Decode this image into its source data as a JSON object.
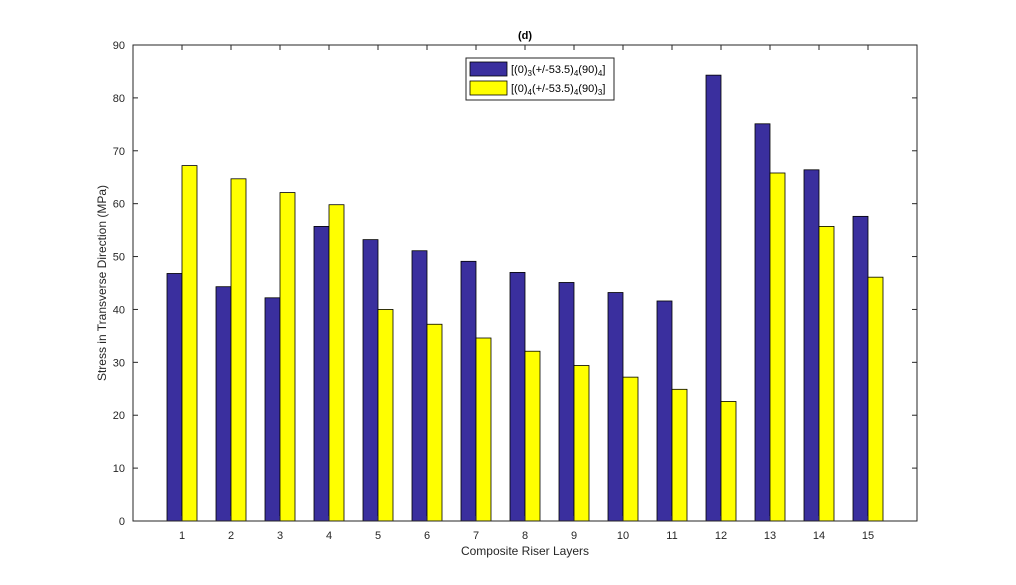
{
  "chart_data": {
    "type": "bar",
    "title": "(d)",
    "xlabel": "Composite Riser Layers",
    "ylabel": "Stress in Transverse Direction (MPa)",
    "ylim": [
      0,
      90
    ],
    "yticks": [
      0,
      10,
      20,
      30,
      40,
      50,
      60,
      70,
      80,
      90
    ],
    "categories": [
      "1",
      "2",
      "3",
      "4",
      "5",
      "6",
      "7",
      "8",
      "9",
      "10",
      "11",
      "12",
      "13",
      "14",
      "15"
    ],
    "legend_position": "top-center",
    "series": [
      {
        "name": "[(0)3(+/-53.5)4(90)4]",
        "legend_parts": [
          [
            "[(0)",
            false
          ],
          [
            "3",
            true
          ],
          [
            "(+/-53.5)",
            false
          ],
          [
            "4",
            true
          ],
          [
            "(90)",
            false
          ],
          [
            "4",
            true
          ],
          [
            "]",
            false
          ]
        ],
        "color": "#3a2f9e",
        "values": [
          46.8,
          44.3,
          42.2,
          55.7,
          53.2,
          51.1,
          49.1,
          47.0,
          45.1,
          43.2,
          41.6,
          84.3,
          75.1,
          66.4,
          57.6
        ]
      },
      {
        "name": "[(0)4(+/-53.5)4(90)3]",
        "legend_parts": [
          [
            "[(0)",
            false
          ],
          [
            "4",
            true
          ],
          [
            "(+/-53.5)",
            false
          ],
          [
            "4",
            true
          ],
          [
            "(90)",
            false
          ],
          [
            "3",
            true
          ],
          [
            "]",
            false
          ]
        ],
        "color": "#ffff00",
        "values": [
          67.2,
          64.7,
          62.1,
          59.8,
          40.0,
          37.2,
          34.6,
          32.1,
          29.4,
          27.2,
          24.9,
          22.6,
          65.8,
          55.7,
          46.1
        ]
      }
    ]
  }
}
